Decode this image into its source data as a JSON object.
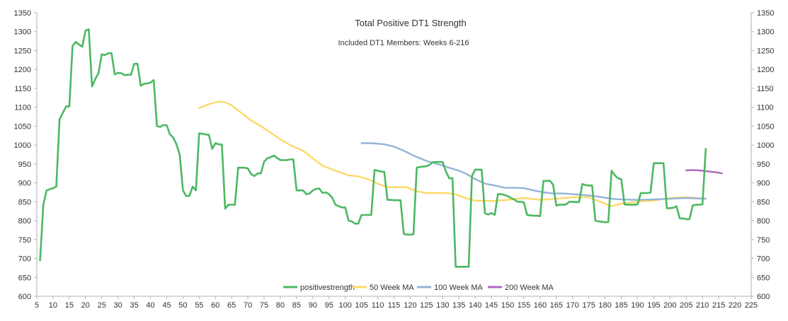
{
  "chart_data": {
    "type": "line",
    "title": "Total Positive DT1 Strength",
    "subtitle": "Included DT1 Members: Weeks 6-216",
    "xlabel": "",
    "ylabel": "",
    "xlim": [
      5,
      225
    ],
    "ylim": [
      600,
      1350
    ],
    "xticks": [
      5,
      10,
      15,
      20,
      25,
      30,
      35,
      40,
      45,
      50,
      55,
      60,
      65,
      70,
      75,
      80,
      85,
      90,
      95,
      100,
      105,
      110,
      115,
      120,
      125,
      130,
      135,
      140,
      145,
      150,
      155,
      160,
      165,
      170,
      175,
      180,
      185,
      190,
      195,
      200,
      205,
      210,
      215,
      220,
      225
    ],
    "yticks": [
      600,
      650,
      700,
      750,
      800,
      850,
      900,
      950,
      1000,
      1050,
      1100,
      1150,
      1200,
      1250,
      1300,
      1350
    ],
    "grid": false,
    "legend_position": "bottom",
    "series": [
      {
        "name": "positivestrength",
        "color": "#4cb862",
        "points": [
          [
            6,
            695
          ],
          [
            7,
            842
          ],
          [
            8,
            880
          ],
          [
            9,
            883
          ],
          [
            10,
            886
          ],
          [
            11,
            890
          ],
          [
            12,
            1068
          ],
          [
            13,
            1085
          ],
          [
            14,
            1102
          ],
          [
            15,
            1102
          ],
          [
            16,
            1262
          ],
          [
            17,
            1273
          ],
          [
            18,
            1266
          ],
          [
            19,
            1260
          ],
          [
            20,
            1303
          ],
          [
            21,
            1306
          ],
          [
            22,
            1155
          ],
          [
            23,
            1175
          ],
          [
            24,
            1190
          ],
          [
            25,
            1240
          ],
          [
            26,
            1238
          ],
          [
            27,
            1243
          ],
          [
            28,
            1243
          ],
          [
            29,
            1187
          ],
          [
            30,
            1191
          ],
          [
            31,
            1190
          ],
          [
            32,
            1185
          ],
          [
            33,
            1186
          ],
          [
            34,
            1186
          ],
          [
            35,
            1215
          ],
          [
            36,
            1215
          ],
          [
            37,
            1157
          ],
          [
            38,
            1162
          ],
          [
            39,
            1163
          ],
          [
            40,
            1165
          ],
          [
            41,
            1172
          ],
          [
            42,
            1050
          ],
          [
            43,
            1048
          ],
          [
            44,
            1053
          ],
          [
            45,
            1052
          ],
          [
            46,
            1028
          ],
          [
            47,
            1020
          ],
          [
            48,
            1002
          ],
          [
            49,
            975
          ],
          [
            50,
            880
          ],
          [
            51,
            865
          ],
          [
            52,
            866
          ],
          [
            53,
            890
          ],
          [
            54,
            880
          ],
          [
            55,
            1031
          ],
          [
            56,
            1030
          ],
          [
            57,
            1028
          ],
          [
            58,
            1027
          ],
          [
            59,
            990
          ],
          [
            60,
            1005
          ],
          [
            61,
            1002
          ],
          [
            62,
            1001
          ],
          [
            63,
            832
          ],
          [
            64,
            842
          ],
          [
            65,
            842
          ],
          [
            66,
            842
          ],
          [
            67,
            940
          ],
          [
            68,
            940
          ],
          [
            69,
            940
          ],
          [
            70,
            938
          ],
          [
            71,
            923
          ],
          [
            72,
            918
          ],
          [
            73,
            925
          ],
          [
            74,
            925
          ],
          [
            75,
            956
          ],
          [
            76,
            965
          ],
          [
            77,
            968
          ],
          [
            78,
            972
          ],
          [
            79,
            966
          ],
          [
            80,
            960
          ],
          [
            81,
            960
          ],
          [
            82,
            960
          ],
          [
            83,
            962
          ],
          [
            84,
            962
          ],
          [
            85,
            880
          ],
          [
            86,
            880
          ],
          [
            87,
            880
          ],
          [
            88,
            870
          ],
          [
            89,
            872
          ],
          [
            90,
            880
          ],
          [
            91,
            884
          ],
          [
            92,
            885
          ],
          [
            93,
            873
          ],
          [
            94,
            875
          ],
          [
            95,
            870
          ],
          [
            96,
            860
          ],
          [
            97,
            842
          ],
          [
            98,
            838
          ],
          [
            99,
            835
          ],
          [
            100,
            835
          ],
          [
            101,
            800
          ],
          [
            102,
            798
          ],
          [
            103,
            792
          ],
          [
            104,
            792
          ],
          [
            105,
            815
          ],
          [
            106,
            815
          ],
          [
            107,
            815
          ],
          [
            108,
            815
          ],
          [
            109,
            934
          ],
          [
            110,
            932
          ],
          [
            111,
            930
          ],
          [
            112,
            929
          ],
          [
            113,
            855
          ],
          [
            114,
            855
          ],
          [
            115,
            854
          ],
          [
            116,
            854
          ],
          [
            117,
            854
          ],
          [
            118,
            765
          ],
          [
            119,
            763
          ],
          [
            120,
            763
          ],
          [
            121,
            764
          ],
          [
            122,
            940
          ],
          [
            123,
            942
          ],
          [
            124,
            943
          ],
          [
            125,
            944
          ],
          [
            126,
            948
          ],
          [
            127,
            955
          ],
          [
            128,
            955
          ],
          [
            129,
            955
          ],
          [
            130,
            955
          ],
          [
            131,
            930
          ],
          [
            132,
            912
          ],
          [
            133,
            912
          ],
          [
            134,
            678
          ],
          [
            135,
            678
          ],
          [
            136,
            678
          ],
          [
            137,
            678
          ],
          [
            138,
            678
          ],
          [
            139,
            918
          ],
          [
            140,
            935
          ],
          [
            141,
            935
          ],
          [
            142,
            935
          ],
          [
            143,
            820
          ],
          [
            144,
            816
          ],
          [
            145,
            820
          ],
          [
            146,
            815
          ],
          [
            147,
            870
          ],
          [
            148,
            870
          ],
          [
            149,
            868
          ],
          [
            150,
            865
          ],
          [
            151,
            860
          ],
          [
            152,
            856
          ],
          [
            153,
            850
          ],
          [
            154,
            850
          ],
          [
            155,
            848
          ],
          [
            156,
            815
          ],
          [
            157,
            814
          ],
          [
            158,
            813
          ],
          [
            159,
            813
          ],
          [
            160,
            812
          ],
          [
            161,
            905
          ],
          [
            162,
            905
          ],
          [
            163,
            906
          ],
          [
            164,
            895
          ],
          [
            165,
            840
          ],
          [
            166,
            842
          ],
          [
            167,
            842
          ],
          [
            168,
            843
          ],
          [
            169,
            850
          ],
          [
            170,
            850
          ],
          [
            171,
            849
          ],
          [
            172,
            849
          ],
          [
            173,
            897
          ],
          [
            174,
            894
          ],
          [
            175,
            893
          ],
          [
            176,
            893
          ],
          [
            177,
            800
          ],
          [
            178,
            798
          ],
          [
            179,
            797
          ],
          [
            180,
            796
          ],
          [
            181,
            796
          ],
          [
            182,
            932
          ],
          [
            183,
            920
          ],
          [
            184,
            912
          ],
          [
            185,
            910
          ],
          [
            186,
            843
          ],
          [
            187,
            842
          ],
          [
            188,
            842
          ],
          [
            189,
            842
          ],
          [
            190,
            843
          ],
          [
            191,
            873
          ],
          [
            192,
            873
          ],
          [
            193,
            873
          ],
          [
            194,
            874
          ],
          [
            195,
            952
          ],
          [
            196,
            952
          ],
          [
            197,
            952
          ],
          [
            198,
            952
          ],
          [
            199,
            833
          ],
          [
            200,
            833
          ],
          [
            201,
            834
          ],
          [
            202,
            838
          ],
          [
            203,
            806
          ],
          [
            204,
            806
          ],
          [
            205,
            804
          ],
          [
            206,
            804
          ],
          [
            207,
            840
          ],
          [
            208,
            842
          ],
          [
            209,
            842
          ],
          [
            210,
            843
          ],
          [
            211,
            990
          ]
        ]
      },
      {
        "name": "50 Week MA",
        "color": "#ffd966",
        "points": [
          [
            55,
            1098
          ],
          [
            58,
            1108
          ],
          [
            61,
            1115
          ],
          [
            63,
            1113
          ],
          [
            65,
            1105
          ],
          [
            68,
            1085
          ],
          [
            71,
            1065
          ],
          [
            74,
            1050
          ],
          [
            77,
            1033
          ],
          [
            80,
            1015
          ],
          [
            83,
            1000
          ],
          [
            87,
            985
          ],
          [
            90,
            965
          ],
          [
            93,
            945
          ],
          [
            97,
            932
          ],
          [
            101,
            920
          ],
          [
            104,
            917
          ],
          [
            107,
            910
          ],
          [
            110,
            898
          ],
          [
            113,
            888
          ],
          [
            116,
            889
          ],
          [
            119,
            888
          ],
          [
            122,
            878
          ],
          [
            125,
            873
          ],
          [
            128,
            873
          ],
          [
            131,
            873
          ],
          [
            134,
            870
          ],
          [
            137,
            860
          ],
          [
            140,
            853
          ],
          [
            145,
            852
          ],
          [
            150,
            855
          ],
          [
            155,
            860
          ],
          [
            160,
            855
          ],
          [
            165,
            858
          ],
          [
            170,
            862
          ],
          [
            175,
            862
          ],
          [
            179,
            848
          ],
          [
            182,
            838
          ],
          [
            185,
            845
          ],
          [
            190,
            850
          ],
          [
            195,
            853
          ],
          [
            200,
            860
          ],
          [
            205,
            862
          ],
          [
            211,
            858
          ]
        ]
      },
      {
        "name": "100 Week MA",
        "color": "#95b3d7",
        "points": [
          [
            105,
            1005
          ],
          [
            108,
            1005
          ],
          [
            112,
            1002
          ],
          [
            115,
            996
          ],
          [
            118,
            985
          ],
          [
            121,
            972
          ],
          [
            125,
            958
          ],
          [
            129,
            948
          ],
          [
            132,
            940
          ],
          [
            135,
            932
          ],
          [
            137,
            925
          ],
          [
            140,
            910
          ],
          [
            143,
            898
          ],
          [
            146,
            893
          ],
          [
            149,
            887
          ],
          [
            152,
            887
          ],
          [
            155,
            886
          ],
          [
            158,
            880
          ],
          [
            161,
            875
          ],
          [
            164,
            872
          ],
          [
            167,
            872
          ],
          [
            170,
            870
          ],
          [
            173,
            868
          ],
          [
            176,
            866
          ],
          [
            179,
            862
          ],
          [
            182,
            858
          ],
          [
            185,
            856
          ],
          [
            190,
            855
          ],
          [
            195,
            856
          ],
          [
            200,
            858
          ],
          [
            205,
            860
          ],
          [
            211,
            858
          ]
        ]
      },
      {
        "name": "200 Week MA",
        "color": "#b266c2",
        "points": [
          [
            205,
            933
          ],
          [
            207,
            934
          ],
          [
            209,
            933
          ],
          [
            211,
            931
          ],
          [
            213,
            929
          ],
          [
            215,
            927
          ],
          [
            216,
            925
          ]
        ]
      }
    ]
  }
}
